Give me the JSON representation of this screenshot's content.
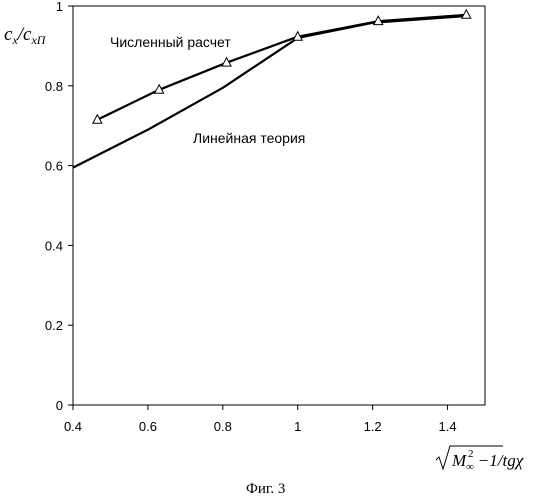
{
  "chart_data": {
    "type": "line",
    "title": "",
    "xlim": [
      0.4,
      1.5
    ],
    "ylim": [
      0,
      1
    ],
    "x_ticks": [
      "0.4",
      "0.6",
      "0.8",
      "1",
      "1.2",
      "1.4"
    ],
    "y_ticks": [
      "0",
      "0.2",
      "0.4",
      "0.6",
      "0.8",
      "1"
    ],
    "x_tick_values": [
      0.4,
      0.6,
      0.8,
      1.0,
      1.2,
      1.4
    ],
    "y_tick_values": [
      0,
      0.2,
      0.4,
      0.6,
      0.8,
      1.0
    ],
    "ylabel": {
      "main1": "c",
      "sub1": "x",
      "slash": "/",
      "main2": "c",
      "sub2": "xП"
    },
    "xlabel": {
      "main": "M",
      "sub": "∞",
      "sup": "2",
      "minus": " −1",
      "rest": "/tgχ"
    },
    "caption": "Фиг. 3",
    "series": [
      {
        "name": "Численный расчет",
        "marker": "triangle",
        "x": [
          0.465,
          0.63,
          0.81,
          1.0,
          1.215,
          1.45
        ],
        "y": [
          0.715,
          0.79,
          0.858,
          0.923,
          0.962,
          0.978
        ]
      },
      {
        "name": "Линейная теория",
        "marker": "none",
        "x": [
          0.4,
          0.6,
          0.8,
          1.0,
          1.2,
          1.45
        ],
        "y": [
          0.595,
          0.69,
          0.795,
          0.92,
          0.958,
          0.975
        ]
      }
    ]
  }
}
